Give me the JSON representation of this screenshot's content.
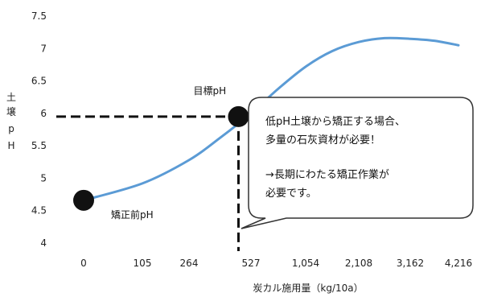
{
  "chart_data": {
    "type": "line",
    "title": "",
    "xlabel": "炭カル施用量（kg/10a）",
    "ylabel": "土壌pH",
    "ylabel_chars": [
      "土",
      "壌",
      "p",
      "H"
    ],
    "categories": [
      "0",
      "105",
      "264",
      "527",
      "1,054",
      "2,108",
      "3,162",
      "4,216"
    ],
    "xlim": [
      0,
      4216
    ],
    "ylim": [
      4,
      7.5
    ],
    "yticks": [
      "4",
      "4.5",
      "5",
      "5.5",
      "6",
      "6.5",
      "7",
      "7.5"
    ],
    "grid": false,
    "series": [
      {
        "color": "#5b9bd5",
        "points": [
          [
            0,
            4.66
          ],
          [
            105,
            4.92
          ],
          [
            264,
            5.28
          ],
          [
            395,
            5.62
          ],
          [
            527,
            6.0
          ],
          [
            790,
            6.38
          ],
          [
            1054,
            6.72
          ],
          [
            1581,
            6.96
          ],
          [
            2108,
            7.1
          ],
          [
            2635,
            7.16
          ],
          [
            3162,
            7.15
          ],
          [
            3689,
            7.12
          ],
          [
            4216,
            7.05
          ]
        ]
      }
    ],
    "markers": [
      {
        "x": 0,
        "y": 4.66,
        "label": "矯正前pH"
      },
      {
        "x": 474,
        "y": 5.95,
        "label": "目標pH"
      }
    ],
    "target_y": 5.95,
    "callout": {
      "lines": [
        "低pH土壌から矯正する場合、",
        "多量の石灰資材が必要！",
        "",
        "→長期にわたる矯正作業が",
        "必要です。"
      ]
    }
  }
}
